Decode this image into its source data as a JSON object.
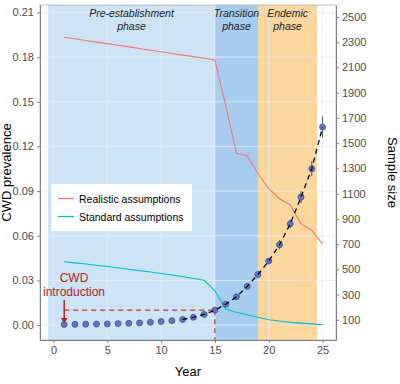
{
  "chart_data": {
    "type": "line",
    "x": [
      1,
      2,
      3,
      4,
      5,
      6,
      7,
      8,
      9,
      10,
      11,
      12,
      13,
      14,
      15,
      16,
      17,
      18,
      19,
      20,
      21,
      22,
      23,
      24,
      25
    ],
    "xlim": [
      -1.25,
      26.25
    ],
    "xticks": [
      0,
      5,
      10,
      15,
      20,
      25
    ],
    "ylim": [
      -0.01,
      0.215
    ],
    "yticks": [
      {
        "value": 0,
        "label": "0.00"
      },
      0.03,
      0.06,
      0.09,
      0.12,
      0.15,
      0.18,
      0.21
    ],
    "y2lim": [
      -60,
      2595
    ],
    "y2ticks": [
      100,
      300,
      500,
      700,
      900,
      1100,
      1300,
      1500,
      1700,
      1900,
      2100,
      2300,
      2500
    ],
    "x_label": "Year",
    "y_label": "CWD prevalence",
    "y2_label": "Sample size",
    "grid": true,
    "legend": "left",
    "series": [
      {
        "name": "Realistic assumptions",
        "color": "#f8766d",
        "axis": "y2",
        "values": [
          2340,
          2327,
          2314,
          2301,
          2289,
          2276,
          2263,
          2250,
          2237,
          2224,
          2211,
          2198,
          2186,
          2173,
          2160,
          1800,
          1420,
          1400,
          1260,
          1140,
          1060,
          1010,
          860,
          810,
          700
        ]
      },
      {
        "name": "Standard assumptions",
        "color": "#00bfc4",
        "axis": "y2",
        "values": [
          560,
          551,
          542,
          532,
          522,
          512,
          501,
          490,
          479,
          467,
          455,
          442,
          428,
          413,
          330,
          185,
          160,
          140,
          120,
          100,
          90,
          80,
          74,
          68,
          62
        ]
      },
      {
        "type": "scatter",
        "color": "#6272c5",
        "marker": "circle",
        "values": [
          0.0004,
          0.0005,
          0.0006,
          0.0007,
          0.0008,
          0.001,
          0.0012,
          0.0015,
          0.0019,
          0.0024,
          0.003,
          0.0038,
          0.0052,
          0.0072,
          0.01,
          0.014,
          0.019,
          0.026,
          0.034,
          0.043,
          0.054,
          0.068,
          0.086,
          0.105,
          0.133
        ],
        "errors": [
          0.0003,
          0.0003,
          0.0003,
          0.0003,
          0.0003,
          0.0003,
          0.0003,
          0.0004,
          0.0004,
          0.0005,
          0.0005,
          0.0006,
          0.0007,
          0.0008,
          0.001,
          0.0012,
          0.0014,
          0.0016,
          0.002,
          0.002,
          0.003,
          0.003,
          0.004,
          0.005,
          0.007
        ]
      },
      {
        "type": "line",
        "color": "#000000",
        "line_style": "dashed",
        "values": [
          null,
          null,
          null,
          null,
          null,
          null,
          null,
          null,
          null,
          null,
          null,
          0.0038,
          0.0052,
          0.0072,
          0.01,
          0.014,
          0.019,
          0.026,
          0.034,
          0.043,
          0.054,
          0.068,
          0.086,
          0.105,
          0.133
        ]
      }
    ],
    "phases": [
      {
        "label": [
          "Pre-establishment",
          "phase"
        ],
        "start": -0.5,
        "end": 15,
        "color": "#cde4f7"
      },
      {
        "label": [
          "Transition",
          "phase"
        ],
        "start": 15,
        "end": 19,
        "color": "#a6cdef"
      },
      {
        "label": [
          "Endemic",
          "phase"
        ],
        "start": 19,
        "end": 24.5,
        "color": "#fbd7a0"
      }
    ],
    "annotations": [
      {
        "text": [
          "CWD",
          "introduction"
        ],
        "x": 1,
        "color": "#b22222"
      }
    ],
    "threshold": {
      "x": [
        1,
        15
      ],
      "y": 0.01,
      "color": "#c0392b",
      "line_style": "dashed"
    }
  }
}
